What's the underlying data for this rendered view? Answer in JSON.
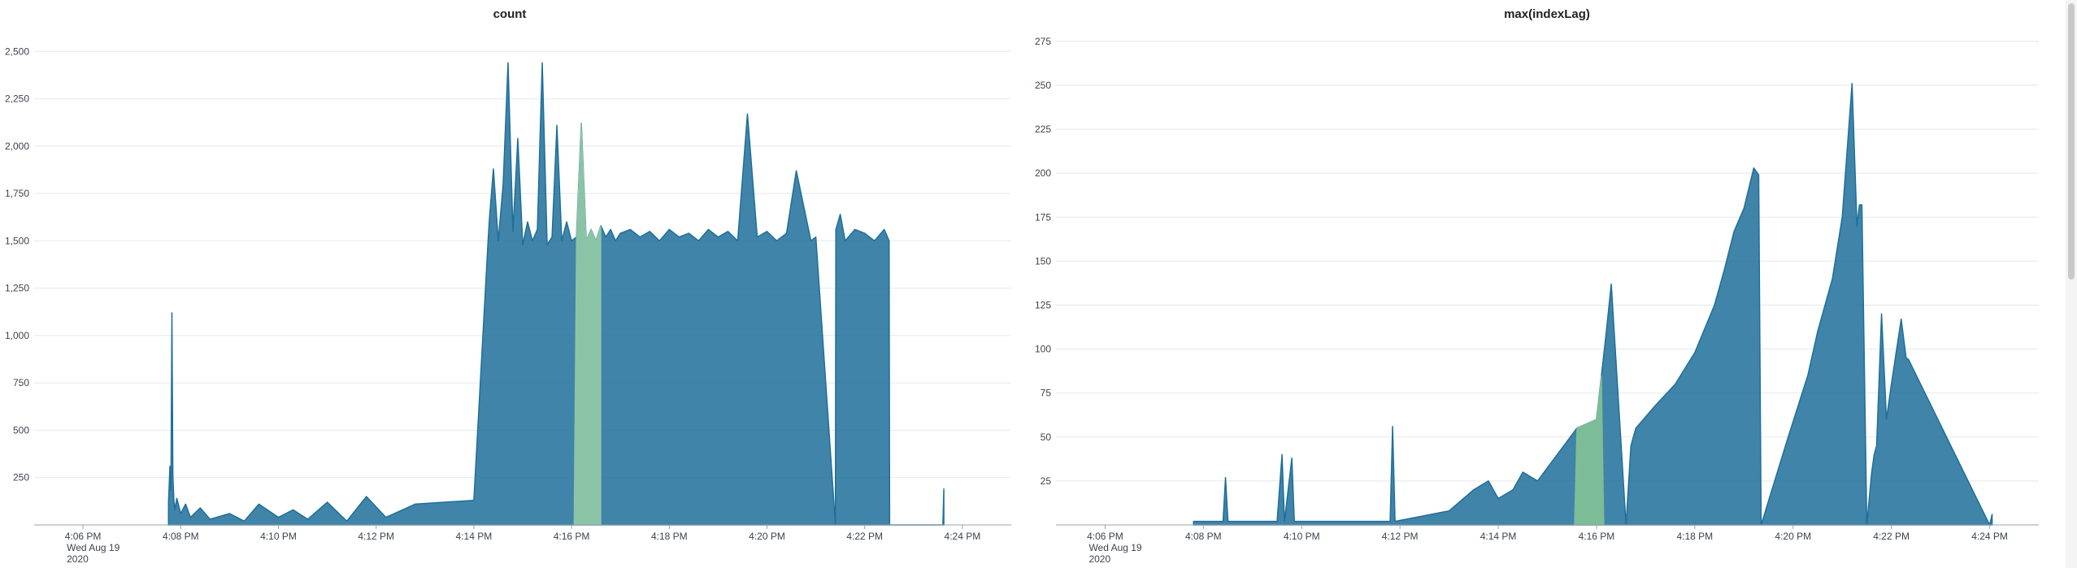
{
  "chart_data": [
    {
      "type": "area",
      "title": "count",
      "xlabel": "",
      "ylabel": "",
      "ylim": [
        0,
        2600
      ],
      "y_ticks": [
        250,
        500,
        750,
        1000,
        1250,
        1500,
        1750,
        2000,
        2250,
        2500
      ],
      "y_tick_labels": [
        "250",
        "500",
        "750",
        "1,000",
        "1,250",
        "1,500",
        "1,750",
        "2,000",
        "2,250",
        "2,500"
      ],
      "x_range_minutes": [
        0,
        20
      ],
      "x_ticks": [
        1,
        3,
        5,
        7,
        9,
        11,
        13,
        15,
        17,
        19
      ],
      "x_tick_labels": [
        "4:06 PM",
        "4:08 PM",
        "4:10 PM",
        "4:12 PM",
        "4:14 PM",
        "4:16 PM",
        "4:18 PM",
        "4:20 PM",
        "4:22 PM",
        "4:24 PM"
      ],
      "x_date_label": [
        "Wed Aug 19",
        "2020"
      ],
      "grid": true,
      "series": [
        {
          "name": "count",
          "color": "#1f6f9a",
          "x": [
            2.75,
            2.78,
            2.8,
            2.82,
            2.84,
            2.86,
            2.88,
            2.92,
            3.0,
            3.1,
            3.2,
            3.4,
            3.6,
            4.0,
            4.3,
            4.6,
            5.0,
            5.3,
            5.6,
            6.0,
            6.4,
            6.8,
            7.2,
            7.8,
            8.4,
            9.0,
            9.3,
            9.32,
            9.4,
            9.5,
            9.6,
            9.7,
            9.8,
            9.9,
            10.0,
            10.1,
            10.2,
            10.3,
            10.4,
            10.5,
            10.6,
            10.7,
            10.8,
            10.9,
            11.0,
            11.1,
            11.2,
            11.3,
            11.4,
            11.5,
            11.6,
            11.7,
            11.8,
            11.9,
            12.0,
            12.2,
            12.4,
            12.6,
            12.8,
            13.0,
            13.2,
            13.4,
            13.6,
            13.8,
            14.0,
            14.2,
            14.4,
            14.6,
            14.8,
            15.0,
            15.2,
            15.4,
            15.6,
            15.9,
            16.0,
            16.4,
            16.41,
            16.5,
            16.6,
            16.8,
            17.0,
            17.2,
            17.4,
            17.5,
            17.51,
            18.6,
            18.62
          ],
          "values": [
            120,
            310,
            180,
            1120,
            260,
            130,
            80,
            140,
            60,
            110,
            40,
            90,
            30,
            60,
            20,
            110,
            40,
            80,
            30,
            120,
            20,
            150,
            40,
            110,
            120,
            130,
            1540,
            1620,
            1880,
            1500,
            1800,
            2440,
            1550,
            2040,
            1480,
            1600,
            1500,
            1560,
            2440,
            1480,
            1520,
            2110,
            1500,
            1600,
            1500,
            1520,
            2120,
            1500,
            1560,
            1500,
            1580,
            1520,
            1560,
            1500,
            1540,
            1560,
            1520,
            1550,
            1500,
            1560,
            1520,
            1540,
            1500,
            1560,
            1520,
            1550,
            1500,
            2170,
            1520,
            1550,
            1500,
            1540,
            1870,
            1500,
            1520,
            0,
            1560,
            1640,
            1500,
            1560,
            1540,
            1500,
            1560,
            1500,
            0,
            0,
            190
          ]
        }
      ],
      "highlight": {
        "color": "#8fc6a6",
        "x_from": 11.05,
        "x_to": 11.6
      }
    },
    {
      "type": "area",
      "title": "max(indexLag)",
      "xlabel": "",
      "ylabel": "",
      "ylim": [
        0,
        280
      ],
      "y_ticks": [
        25,
        50,
        75,
        100,
        125,
        150,
        175,
        200,
        225,
        250,
        275
      ],
      "y_tick_labels": [
        "25",
        "50",
        "75",
        "100",
        "125",
        "150",
        "175",
        "200",
        "225",
        "250",
        "275"
      ],
      "x_range_minutes": [
        0,
        20
      ],
      "x_ticks": [
        1,
        3,
        5,
        7,
        9,
        11,
        13,
        15,
        17,
        19
      ],
      "x_tick_labels": [
        "4:06 PM",
        "4:08 PM",
        "4:10 PM",
        "4:12 PM",
        "4:14 PM",
        "4:16 PM",
        "4:18 PM",
        "4:20 PM",
        "4:22 PM",
        "4:24 PM"
      ],
      "x_date_label": [
        "Wed Aug 19",
        "2020"
      ],
      "grid": true,
      "series": [
        {
          "name": "max(indexLag)",
          "color": "#1f6f9a",
          "x": [
            2.8,
            3.4,
            3.45,
            3.5,
            4.5,
            4.6,
            4.65,
            4.8,
            4.85,
            4.9,
            6.8,
            6.85,
            6.9,
            8.0,
            8.5,
            8.8,
            9.0,
            9.3,
            9.5,
            9.8,
            10.2,
            10.6,
            11.0,
            11.1,
            11.2,
            11.3,
            11.6,
            11.7,
            11.8,
            12.2,
            12.6,
            13.0,
            13.4,
            13.6,
            13.8,
            14.0,
            14.2,
            14.3,
            14.35,
            14.9,
            15.3,
            15.5,
            15.8,
            16.0,
            16.2,
            16.3,
            16.35,
            16.4,
            16.5,
            16.6,
            16.65,
            16.7,
            16.8,
            16.9,
            17.0,
            17.2,
            17.3,
            17.35,
            19.0,
            19.05
          ],
          "values": [
            2,
            2,
            27,
            2,
            2,
            40,
            2,
            38,
            2,
            2,
            2,
            56,
            2,
            8,
            20,
            25,
            15,
            20,
            30,
            25,
            40,
            55,
            60,
            85,
            110,
            137,
            0,
            45,
            55,
            68,
            80,
            98,
            125,
            145,
            167,
            180,
            203,
            199,
            0,
            50,
            85,
            110,
            140,
            175,
            251,
            170,
            182,
            182,
            0,
            30,
            40,
            45,
            120,
            60,
            80,
            117,
            95,
            94,
            0,
            6
          ]
        }
      ],
      "highlight": {
        "color": "#7fbf95",
        "x_from": 10.55,
        "x_to": 11.15
      }
    }
  ]
}
